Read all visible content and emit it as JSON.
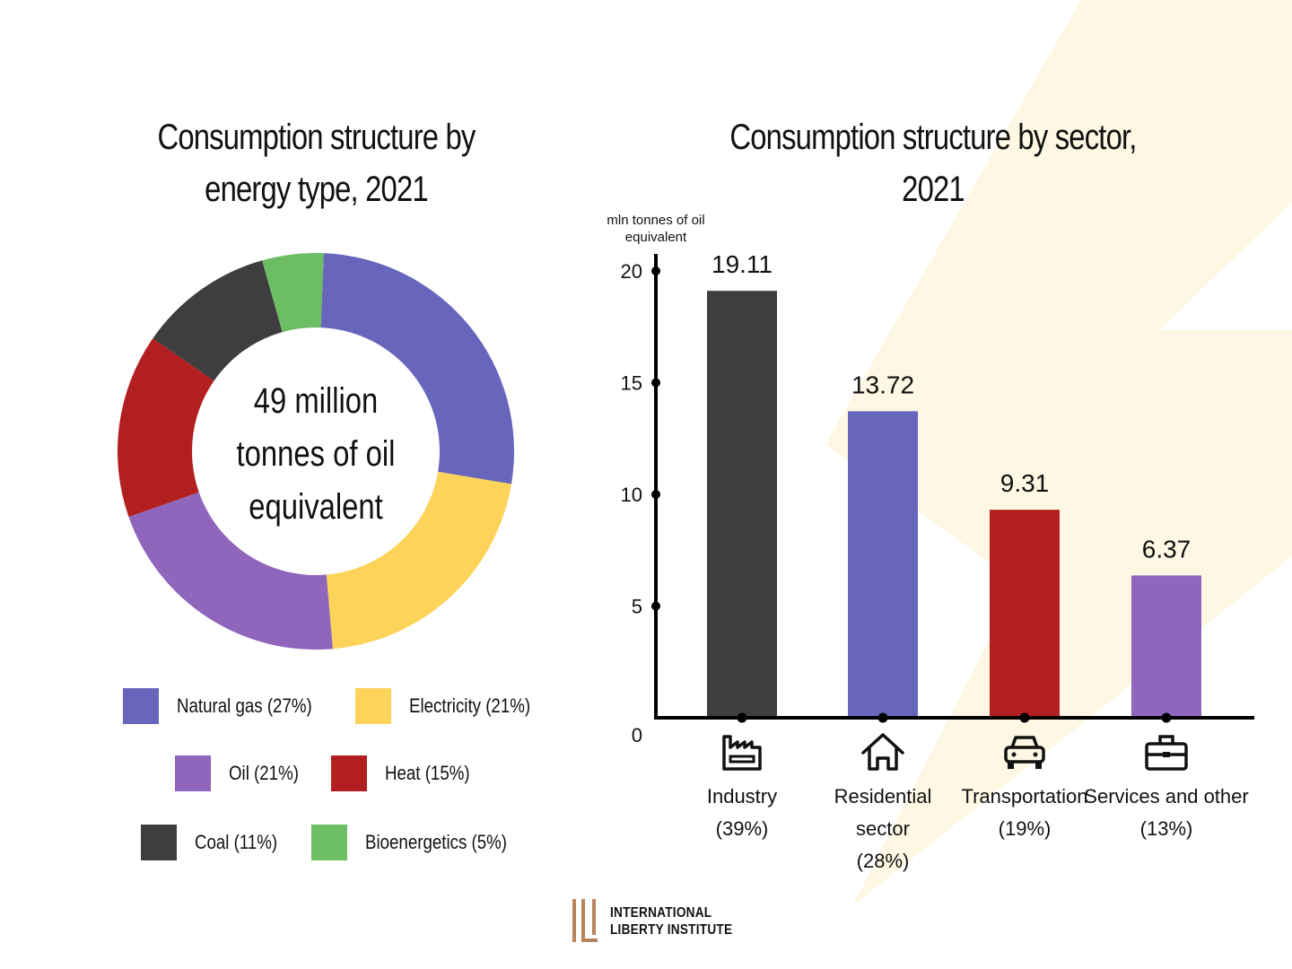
{
  "page": {
    "logo": {
      "line1": "INTERNATIONAL",
      "line2": "LIBERTY INSTITUTE",
      "icon": "ili-logo-icon"
    },
    "colors": {
      "natural_gas": "#6766bc",
      "electricity": "#fed35a",
      "oil": "#9066bc",
      "heat": "#b21f20",
      "coal": "#3e3e3e",
      "bioenergetics": "#6cbd64",
      "bolt": "#fdf7e3",
      "logo": "#b8845e"
    }
  },
  "chart_data": [
    {
      "type": "pie",
      "variant": "donut",
      "title": "Consumption structure by energy type, 2021",
      "center_label": [
        "49 million",
        "tonnes of oil",
        "equivalent"
      ],
      "categories": [
        "Natural gas",
        "Electricity",
        "Oil",
        "Heat",
        "Coal",
        "Bioenergetics"
      ],
      "values": [
        27,
        21,
        21,
        15,
        11,
        5
      ],
      "legend": [
        [
          "Natural gas (27%)",
          "Electricity (21%)"
        ],
        [
          "Oil (21%)",
          "Heat (15%)"
        ],
        [
          "Coal (11%)",
          "Bioenergetics (5%)"
        ]
      ],
      "legend_placement": "bottom"
    },
    {
      "type": "bar",
      "title": "Consumption structure by sector, 2021",
      "ylabel": "mln tonnes of oil equivalent",
      "ylim": [
        0,
        20
      ],
      "yticks": [
        0,
        5,
        10,
        15,
        20
      ],
      "categories": [
        "Industry",
        "Residential sector",
        "Transportation",
        "Services and other"
      ],
      "category_lines": [
        [
          "Industry",
          "(39%)"
        ],
        [
          "Residential",
          "sector",
          "(28%)"
        ],
        [
          "Transportation",
          "(19%)"
        ],
        [
          "Services and other",
          "(13%)"
        ]
      ],
      "values": [
        19.11,
        13.72,
        9.31,
        6.37
      ],
      "value_labels": [
        "19.11",
        "13.72",
        "9.31",
        "6.37"
      ],
      "icons": [
        "factory-icon",
        "house-icon",
        "car-icon",
        "briefcase-icon"
      ],
      "bar_colors": [
        "#3e3e3e",
        "#6766bc",
        "#b21f20",
        "#9066bc"
      ]
    }
  ]
}
